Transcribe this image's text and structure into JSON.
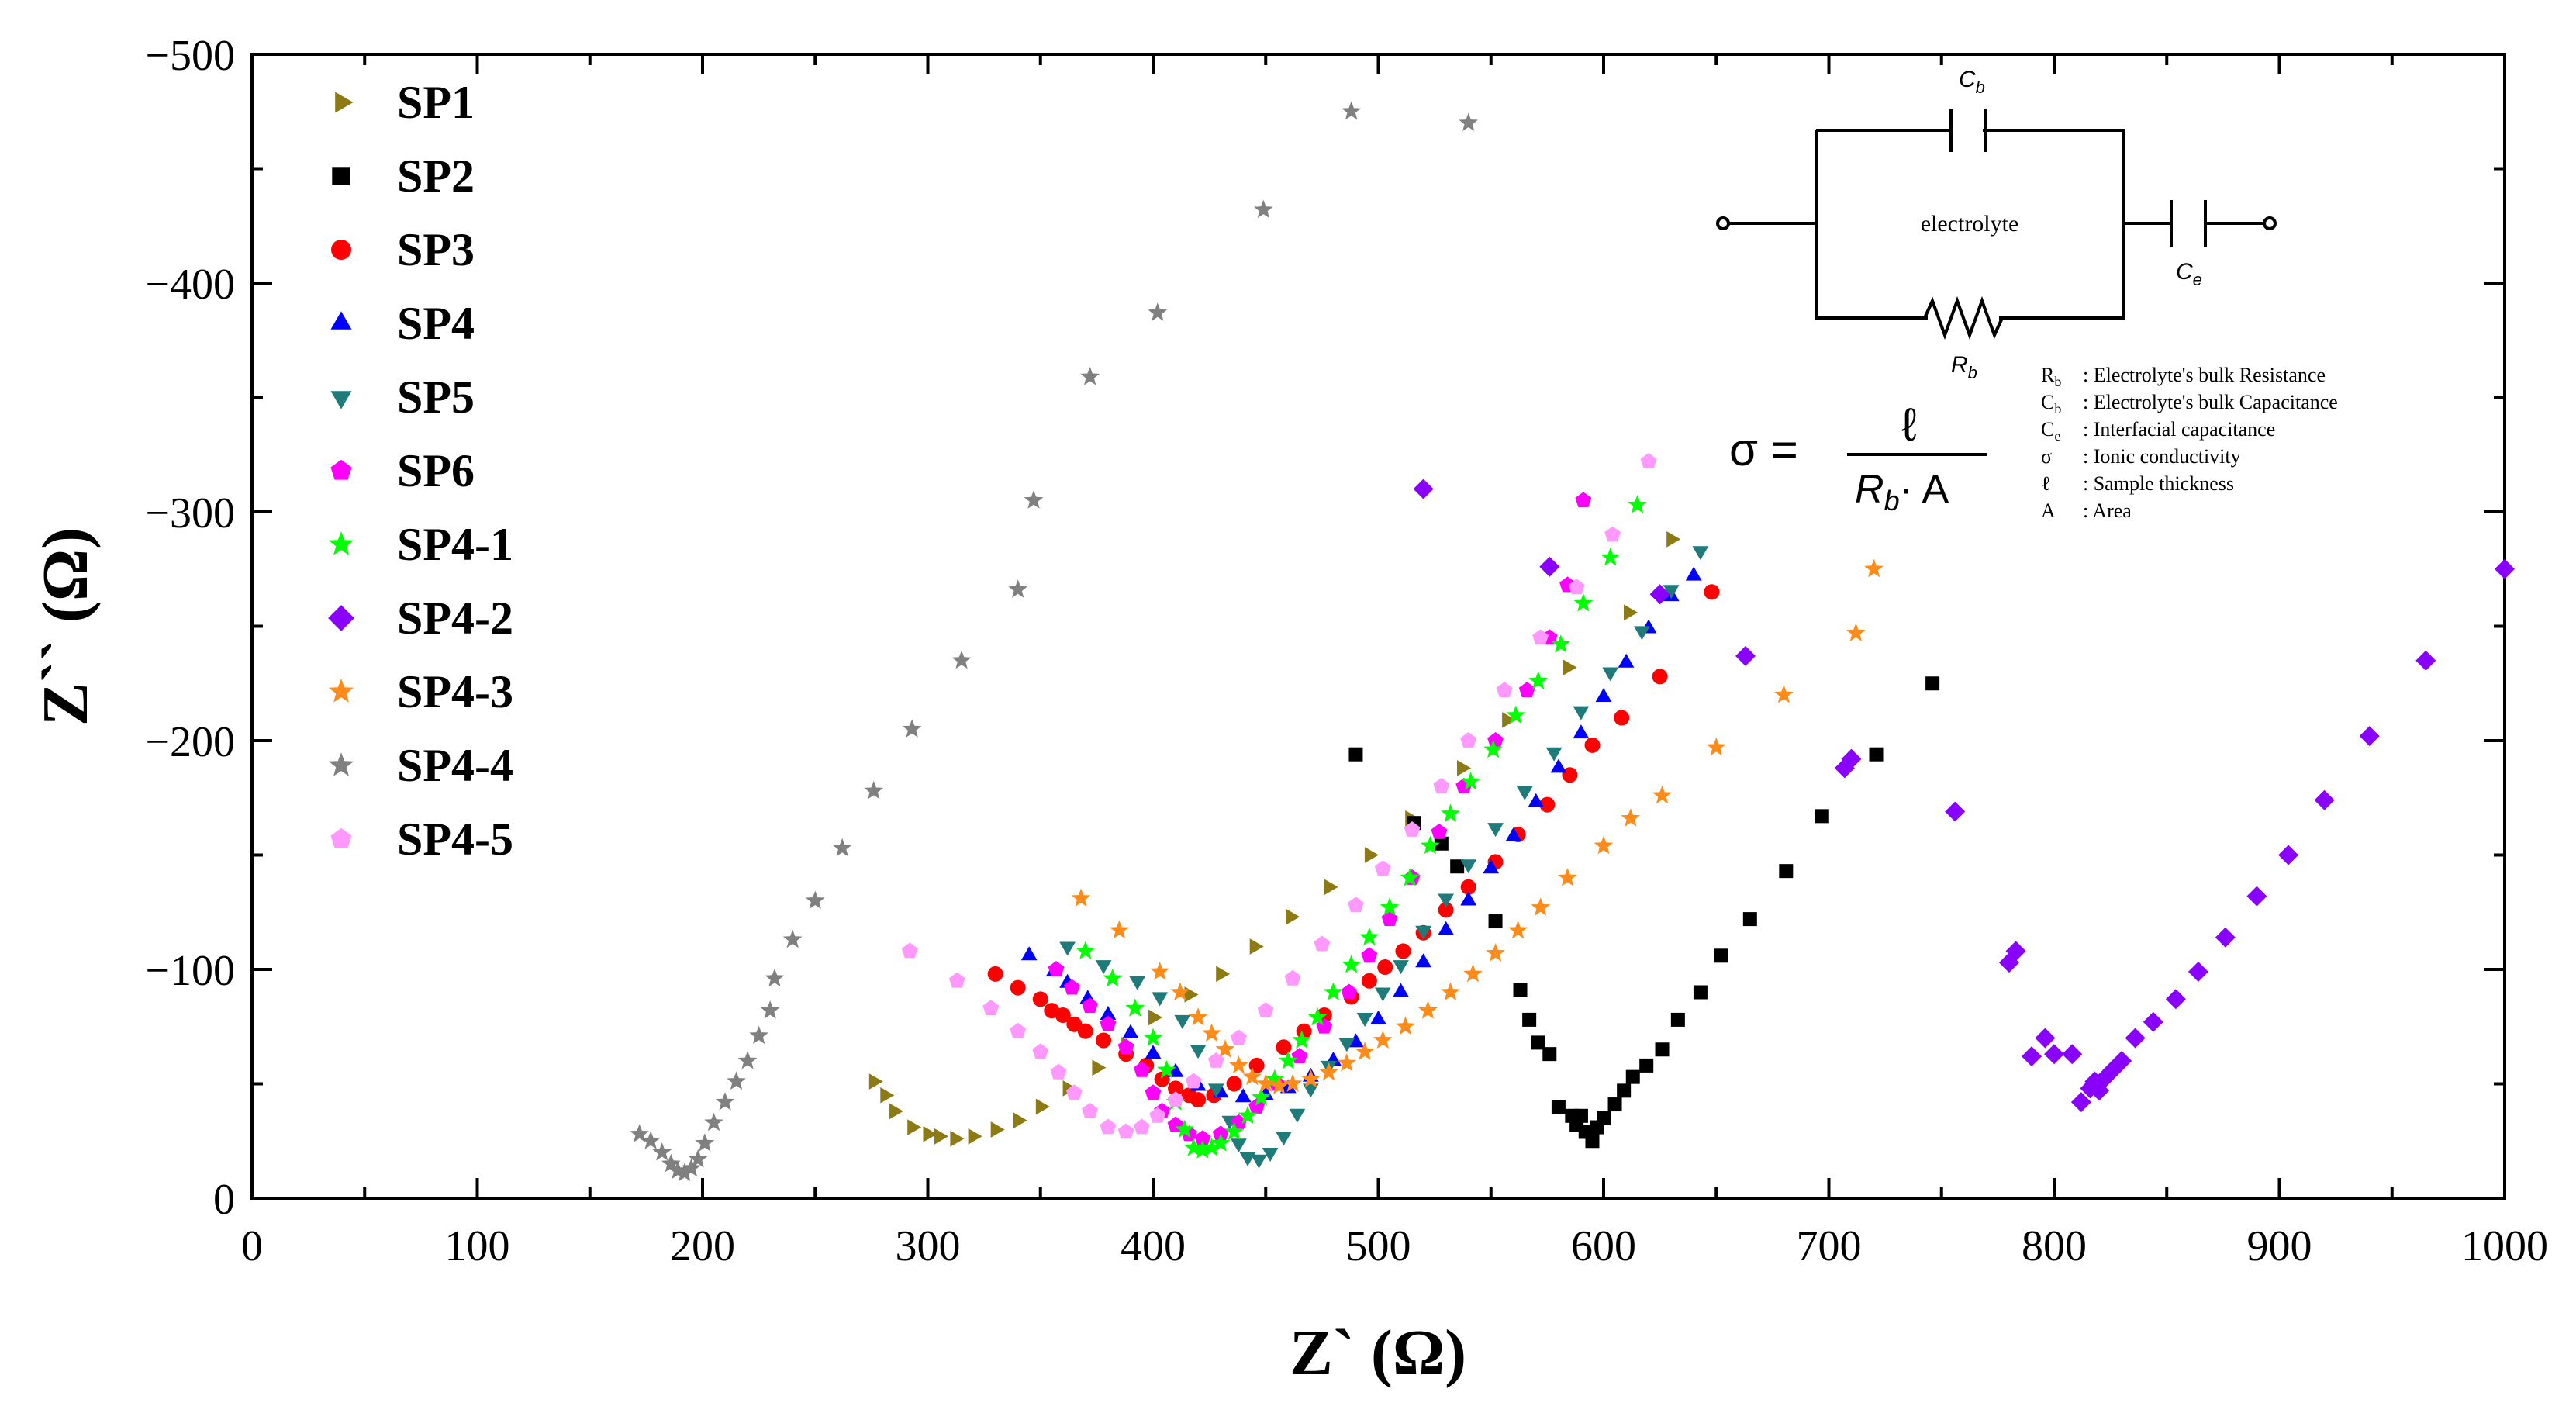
{
  "chart_data": {
    "type": "scatter",
    "xlabel": "Z` (Ω)",
    "ylabel": "Z`` (Ω)",
    "xlim": [
      0,
      1000
    ],
    "ylim": [
      0,
      -500
    ],
    "xticks": [
      "0",
      "100",
      "200",
      "300",
      "400",
      "500",
      "600",
      "700",
      "800",
      "900",
      "1000"
    ],
    "yticks": [
      "0",
      "−100",
      "−200",
      "−300",
      "−400",
      "−500"
    ],
    "grid": false,
    "legend_position": "top-left",
    "series": [
      {
        "name": "SP1",
        "marker": "triangle-right",
        "color": "#8c7b14",
        "x": [
          276,
          281,
          285,
          293,
          300,
          305,
          312,
          320,
          330,
          340,
          350,
          362,
          375,
          388,
          400,
          416,
          430,
          445,
          461,
          478,
          496,
          514,
          537,
          557,
          584,
          611,
          630
        ],
        "y": [
          -51,
          -45,
          -38,
          -31,
          -28,
          -27,
          -26,
          -27,
          -30,
          -34,
          -40,
          -48,
          -57,
          -67,
          -79,
          -89,
          -98,
          -110,
          -123,
          -136,
          -150,
          -166,
          -188,
          -209,
          -232,
          -256,
          -288
        ]
      },
      {
        "name": "SP2",
        "marker": "square",
        "color": "#000000",
        "x": [
          490,
          516,
          528,
          535,
          552,
          563,
          567,
          571,
          576,
          580,
          586,
          588,
          590,
          592,
          595,
          597,
          600,
          605,
          609,
          613,
          619,
          626,
          633,
          643,
          652,
          665,
          681,
          697,
          721,
          746
        ],
        "y": [
          -194,
          -164,
          -155,
          -145,
          -121,
          -91,
          -78,
          -68,
          -63,
          -40,
          -36,
          -32,
          -36,
          -29,
          -25,
          -31,
          -35,
          -41,
          -47,
          -53,
          -58,
          -65,
          -78,
          -90,
          -106,
          -122,
          -143,
          -167,
          -194,
          -225
        ]
      },
      {
        "name": "SP3",
        "marker": "circle",
        "color": "#ff0000",
        "x": [
          330,
          340,
          350,
          355,
          360,
          365,
          370,
          378,
          388,
          397,
          404,
          410,
          416,
          420,
          427,
          436,
          446,
          458,
          467,
          476,
          488,
          496,
          503,
          511,
          520,
          530,
          540,
          552,
          562,
          575,
          585,
          595,
          608,
          625,
          648
        ],
        "y": [
          -98,
          -92,
          -87,
          -82,
          -80,
          -76,
          -73,
          -69,
          -63,
          -58,
          -52,
          -48,
          -45,
          -43,
          -45,
          -50,
          -58,
          -66,
          -73,
          -80,
          -88,
          -95,
          -101,
          -108,
          -116,
          -126,
          -136,
          -147,
          -159,
          -172,
          -185,
          -198,
          -210,
          -228,
          -265
        ]
      },
      {
        "name": "SP4",
        "marker": "triangle-up",
        "color": "#0000ff",
        "x": [
          345,
          356,
          362,
          371,
          380,
          390,
          400,
          410,
          420,
          430,
          440,
          450,
          460,
          470,
          480,
          490,
          500,
          510,
          520,
          530,
          540,
          550,
          560,
          570,
          580,
          590,
          600,
          610,
          620,
          630,
          640
        ],
        "y": [
          -106,
          -99,
          -94,
          -87,
          -80,
          -72,
          -63,
          -55,
          -49,
          -46,
          -44,
          -45,
          -48,
          -53,
          -60,
          -68,
          -78,
          -90,
          -103,
          -117,
          -130,
          -144,
          -158,
          -173,
          -188,
          -203,
          -219,
          -234,
          -249,
          -263,
          -272
        ]
      },
      {
        "name": "SP5",
        "marker": "triangle-down",
        "color": "#1f7a7a",
        "x": [
          362,
          378,
          393,
          403,
          413,
          420,
          428,
          434,
          438,
          442,
          447,
          452,
          458,
          464,
          470,
          478,
          486,
          494,
          502,
          510,
          520,
          530,
          540,
          552,
          565,
          578,
          590,
          603,
          617,
          630,
          643
        ],
        "y": [
          -110,
          -102,
          -95,
          -88,
          -78,
          -65,
          -48,
          -34,
          -24,
          -18,
          -17,
          -20,
          -27,
          -37,
          -48,
          -58,
          -68,
          -79,
          -90,
          -102,
          -117,
          -131,
          -146,
          -162,
          -178,
          -195,
          -213,
          -230,
          -248,
          -266,
          -283
        ]
      },
      {
        "name": "SP6",
        "marker": "pentagon",
        "color": "#ff00ff",
        "x": [
          357,
          364,
          372,
          380,
          388,
          395,
          400,
          404,
          410,
          416,
          422,
          430,
          438,
          446,
          455,
          465,
          476,
          487,
          496,
          505,
          515,
          527,
          538,
          552,
          566,
          576,
          584,
          591
        ],
        "y": [
          -100,
          -92,
          -84,
          -76,
          -66,
          -56,
          -46,
          -38,
          -32,
          -28,
          -26,
          -28,
          -33,
          -40,
          -50,
          -62,
          -75,
          -90,
          -106,
          -122,
          -140,
          -160,
          -180,
          -200,
          -222,
          -245,
          -268,
          -305
        ]
      },
      {
        "name": "SP4-1",
        "marker": "star",
        "color": "#00ff00",
        "x": [
          370,
          382,
          392,
          400,
          406,
          410,
          414,
          418,
          422,
          426,
          430,
          436,
          442,
          448,
          454,
          460,
          466,
          473,
          480,
          488,
          496,
          505,
          514,
          523,
          532,
          541,
          551,
          561,
          571,
          581,
          591,
          603,
          615
        ],
        "y": [
          -108,
          -96,
          -83,
          -70,
          -56,
          -42,
          -30,
          -22,
          -21,
          -22,
          -24,
          -29,
          -36,
          -44,
          -52,
          -60,
          -69,
          -79,
          -90,
          -102,
          -114,
          -127,
          -140,
          -154,
          -168,
          -182,
          -196,
          -211,
          -226,
          -242,
          -260,
          -280,
          -303
        ]
      },
      {
        "name": "SP4-2",
        "marker": "diamond",
        "color": "#8a00ff",
        "x": [
          520,
          576,
          625,
          663,
          707,
          710,
          756,
          780,
          783,
          790,
          796,
          800,
          808,
          812,
          816,
          818,
          820,
          822,
          826,
          830,
          836,
          844,
          854,
          864,
          876,
          890,
          904,
          920,
          940,
          965,
          1000
        ],
        "y": [
          -310,
          -276,
          -264,
          -237,
          -188,
          -192,
          -169,
          -103,
          -108,
          -62,
          -70,
          -63,
          -63,
          -42,
          -48,
          -51,
          -47,
          -52,
          -56,
          -60,
          -70,
          -77,
          -87,
          -99,
          -114,
          -132,
          -150,
          -174,
          -202,
          -235,
          -275
        ]
      },
      {
        "name": "SP4-3",
        "marker": "star",
        "color": "#ff8c1a",
        "x": [
          368,
          385,
          403,
          412,
          420,
          426,
          432,
          438,
          444,
          450,
          456,
          462,
          470,
          478,
          486,
          494,
          502,
          512,
          522,
          532,
          542,
          552,
          562,
          572,
          584,
          600,
          612,
          626,
          650,
          680,
          712,
          720
        ],
        "y": [
          -131,
          -117,
          -99,
          -90,
          -79,
          -72,
          -65,
          -58,
          -53,
          -50,
          -49,
          -50,
          -52,
          -55,
          -59,
          -64,
          -69,
          -75,
          -82,
          -90,
          -98,
          -107,
          -117,
          -127,
          -140,
          -154,
          -166,
          -176,
          -197,
          -220,
          -247,
          -275
        ]
      },
      {
        "name": "SP4-4",
        "marker": "star",
        "color": "#808080",
        "x": [
          172,
          177,
          182,
          186,
          189,
          192,
          195,
          198,
          201,
          205,
          210,
          215,
          220,
          225,
          230,
          232,
          240,
          250,
          262,
          276,
          293,
          315,
          340,
          347,
          372,
          402,
          449,
          488,
          540
        ],
        "y": [
          -28,
          -25,
          -20,
          -15,
          -12,
          -11,
          -13,
          -17,
          -24,
          -33,
          -42,
          -51,
          -60,
          -71,
          -82,
          -96,
          -113,
          -130,
          -153,
          -178,
          -205,
          -235,
          -266,
          -305,
          -359,
          -387,
          -432,
          -475,
          -470
        ]
      },
      {
        "name": "SP4-5",
        "marker": "pentagon",
        "color": "#ff99ff",
        "x": [
          292,
          313,
          328,
          340,
          350,
          358,
          365,
          372,
          380,
          388,
          395,
          402,
          410,
          418,
          428,
          438,
          450,
          462,
          475,
          490,
          502,
          515,
          528,
          540,
          556,
          572,
          588,
          604,
          620
        ],
        "y": [
          -108,
          -95,
          -83,
          -73,
          -64,
          -55,
          -46,
          -38,
          -31,
          -29,
          -31,
          -36,
          -43,
          -51,
          -60,
          -70,
          -82,
          -96,
          -111,
          -128,
          -144,
          -161,
          -180,
          -200,
          -222,
          -245,
          -267,
          -290,
          -322
        ]
      }
    ]
  },
  "circuit": {
    "cb_label": "C",
    "cb_sub": "b",
    "ce_label": "C",
    "ce_sub": "e",
    "rb_label": "R",
    "rb_sub": "b",
    "box_label": "electrolyte"
  },
  "formula": {
    "lhs": "σ =",
    "numerator": "ℓ",
    "denominator": "R",
    "den_sub": "b",
    "den_rest": "· A"
  },
  "definitions": [
    {
      "sym": "R",
      "sub": "b",
      "text": ": Electrolyte's bulk Resistance"
    },
    {
      "sym": "C",
      "sub": "b",
      "text": ": Electrolyte's bulk Capacitance"
    },
    {
      "sym": "C",
      "sub": "e",
      "text": ": Interfacial  capacitance"
    },
    {
      "sym": "σ",
      "sub": "",
      "text": ": Ionic conductivity"
    },
    {
      "sym": "ℓ",
      "sub": "",
      "text": ": Sample thickness"
    },
    {
      "sym": "A",
      "sub": "",
      "text": ": Area"
    }
  ]
}
